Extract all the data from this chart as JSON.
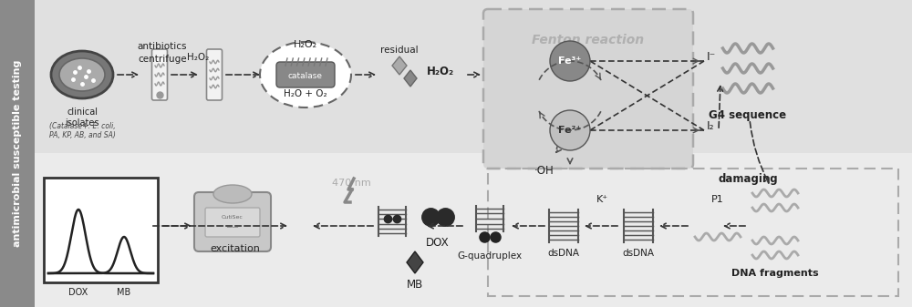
{
  "sidebar_text": "antimicrobial susceptible testing",
  "fenton_text": "Fenton reaction",
  "annotations": {
    "antibiotics": "antibiotics",
    "centrifuge": "centrifuge",
    "H2O2_arrow": "H₂O₂",
    "catalase_h2o2": "H₂O₂",
    "catalase_products": "H₂O + O₂",
    "residual": "residual",
    "residual_H2O2": "H₂O₂",
    "Fe3": "Fe³⁺",
    "Fe2": "Fe²⁺",
    "OH": "·OH",
    "I_minus": "I⁻",
    "I2": "I₂",
    "damaging": "damaging",
    "G4_sequence": "G4 sequence",
    "DNA_fragments": "DNA fragments",
    "P1": "P1",
    "dsDNA1": "dsDNA",
    "K_plus": "K⁺",
    "dsDNA2": "dsDNA",
    "G_quadruplex": "G-quadruplex",
    "DOX": "DOX",
    "MB": "MB",
    "nm_470": "470 nm",
    "excitation": "excitation",
    "catalase_plus": "(Catalase+: E. coli,\nPA, KP, AB, and SA)",
    "clinical_isolates": "clinical\nisolates",
    "catalase_label": "catalase"
  },
  "colors": {
    "sidebar_bg": "#8a8a8a",
    "sidebar_text": "#ffffff",
    "main_bg_top": "#d8d8d8",
    "main_bg_bottom": "#e8e8e8",
    "petri_outer": "#666666",
    "petri_inner": "#999999",
    "tube_body": "#f0f0f0",
    "tube_edge": "#888888",
    "wavy_gray": "#888888",
    "catalase_ellipse_bg": "#ffffff",
    "bacterium_body": "#888888",
    "diamond_dark": "#777777",
    "diamond_light": "#aaaaaa",
    "fenton_box_bg": "#d0d0d0",
    "fenton_box_edge": "#999999",
    "fenton_text_color": "#aaaaaa",
    "fe3_circle": "#888888",
    "fe2_circle": "#bbbbbb",
    "arrow_color": "#333333",
    "dna_ladder": "#555555",
    "g4_wavy": "#999999",
    "dox_dots": "#333333",
    "mb_diamond": "#444444",
    "spec_curve": "#222222",
    "text_dark": "#222222",
    "text_mid": "#555555",
    "lightning": "#888888",
    "nm_text": "#aaaaaa"
  }
}
